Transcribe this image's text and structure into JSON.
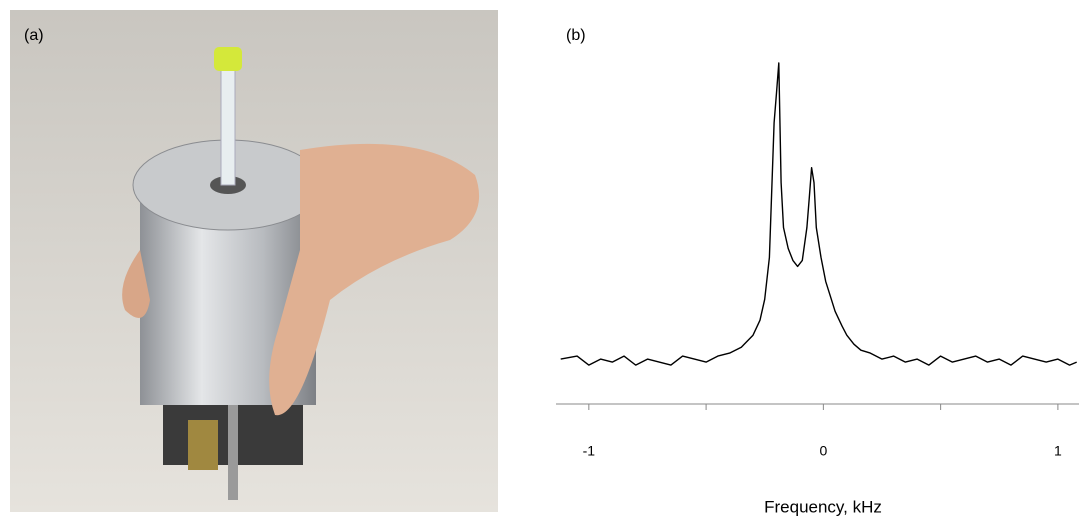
{
  "photo": {
    "label": "(a)"
  },
  "chart_data": {
    "type": "line",
    "panel_label": "(b)",
    "x_label": "Frequency, kHz",
    "x": [
      -1.12,
      -1.05,
      -1.0,
      -0.95,
      -0.9,
      -0.85,
      -0.8,
      -0.75,
      -0.7,
      -0.65,
      -0.6,
      -0.55,
      -0.5,
      -0.45,
      -0.4,
      -0.35,
      -0.3,
      -0.27,
      -0.25,
      -0.23,
      -0.21,
      -0.2,
      -0.19,
      -0.18,
      -0.17,
      -0.15,
      -0.13,
      -0.11,
      -0.09,
      -0.07,
      -0.06,
      -0.05,
      -0.04,
      -0.03,
      -0.01,
      0.01,
      0.03,
      0.05,
      0.08,
      0.1,
      0.13,
      0.16,
      0.2,
      0.25,
      0.3,
      0.35,
      0.4,
      0.45,
      0.5,
      0.55,
      0.6,
      0.65,
      0.7,
      0.75,
      0.8,
      0.85,
      0.9,
      0.95,
      1.0,
      1.05,
      1.08
    ],
    "values": [
      0.01,
      0.02,
      -0.01,
      0.01,
      0.0,
      0.02,
      -0.01,
      0.01,
      0.0,
      -0.01,
      0.02,
      0.01,
      0.0,
      0.02,
      0.03,
      0.05,
      0.09,
      0.14,
      0.21,
      0.35,
      0.8,
      0.9,
      1.0,
      0.6,
      0.45,
      0.38,
      0.34,
      0.32,
      0.34,
      0.45,
      0.55,
      0.65,
      0.6,
      0.45,
      0.35,
      0.27,
      0.22,
      0.17,
      0.12,
      0.09,
      0.06,
      0.04,
      0.03,
      0.01,
      0.02,
      0.0,
      0.01,
      -0.01,
      0.02,
      0.0,
      0.01,
      0.02,
      0.0,
      0.01,
      -0.01,
      0.02,
      0.01,
      0.0,
      0.01,
      -0.01,
      0.0
    ],
    "color": "#000000",
    "xlim": [
      -1.14,
      1.09
    ],
    "xticks": [
      -1,
      0,
      1
    ],
    "xminor_ticks": [
      -0.5,
      0.5
    ],
    "ylim": [
      -0.14,
      1.0
    ]
  }
}
